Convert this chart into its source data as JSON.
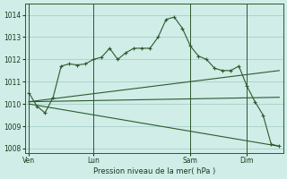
{
  "background_color": "#d0ede8",
  "grid_color": "#a0c8c4",
  "line_color": "#2d5a2d",
  "ylabel_ticks": [
    1008,
    1009,
    1010,
    1011,
    1012,
    1013,
    1014
  ],
  "xlabel": "Pression niveau de la mer( hPa )",
  "xtick_labels": [
    "Ven",
    "Lun",
    "Sam",
    "Dim"
  ],
  "xtick_positions": [
    0,
    8,
    20,
    27
  ],
  "vline_positions": [
    0,
    8,
    20,
    27
  ],
  "series1_x": [
    0,
    1,
    2,
    3,
    4,
    5,
    6,
    7,
    8,
    9,
    10,
    11,
    12,
    13,
    14,
    15,
    16,
    17,
    18,
    19,
    20,
    21,
    22,
    23,
    24,
    25,
    26,
    27,
    28,
    29,
    30,
    31
  ],
  "series1_y": [
    1010.5,
    1009.9,
    1009.6,
    1010.3,
    1011.7,
    1011.8,
    1011.75,
    1011.8,
    1012.0,
    1012.1,
    1012.5,
    1012.0,
    1012.3,
    1012.5,
    1012.5,
    1012.5,
    1013.0,
    1013.8,
    1013.9,
    1013.4,
    1012.6,
    1012.15,
    1012.0,
    1011.6,
    1011.5,
    1011.5,
    1011.7,
    1010.8,
    1010.1,
    1009.5,
    1008.2,
    1008.1
  ],
  "series2_x": [
    0,
    31
  ],
  "series2_y": [
    1010.1,
    1011.5
  ],
  "series3_x": [
    0,
    31
  ],
  "series3_y": [
    1010.1,
    1010.3
  ],
  "series4_x": [
    0,
    31
  ],
  "series4_y": [
    1010.0,
    1008.1
  ],
  "ylim": [
    1007.8,
    1014.5
  ],
  "xlim": [
    -0.5,
    31.5
  ],
  "figsize": [
    3.2,
    2.0
  ],
  "dpi": 100
}
